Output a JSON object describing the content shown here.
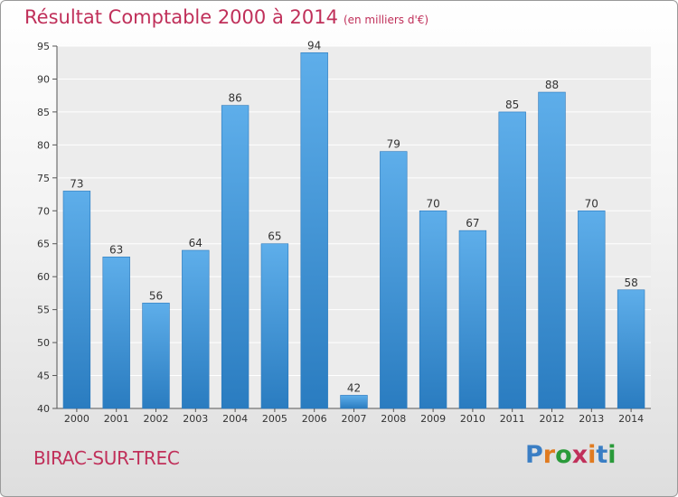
{
  "chart_data": {
    "type": "bar",
    "title": "Résultat Comptable 2000 à 2014",
    "subtitle": "(en milliers d'€)",
    "categories": [
      "2000",
      "2001",
      "2002",
      "2003",
      "2004",
      "2005",
      "2006",
      "2007",
      "2008",
      "2009",
      "2010",
      "2011",
      "2012",
      "2013",
      "2014"
    ],
    "values": [
      73,
      63,
      56,
      64,
      86,
      65,
      94,
      42,
      79,
      70,
      67,
      85,
      88,
      70,
      58
    ],
    "ylim": [
      40,
      95
    ],
    "yticks": [
      40,
      45,
      50,
      55,
      60,
      65,
      70,
      75,
      80,
      85,
      90,
      95
    ],
    "xlabel": "",
    "ylabel": "",
    "grid": true,
    "bar_color": "#3f98da"
  },
  "footer": {
    "place": "BIRAC-SUR-TREC",
    "logo_letters": [
      "P",
      "r",
      "o",
      "x",
      "i",
      "t",
      "i"
    ],
    "logo_colors": [
      "#3a7ec4",
      "#e07b20",
      "#2a9a3a",
      "#c0305a",
      "#e07b20",
      "#3a7ec4",
      "#2a9a3a"
    ]
  }
}
